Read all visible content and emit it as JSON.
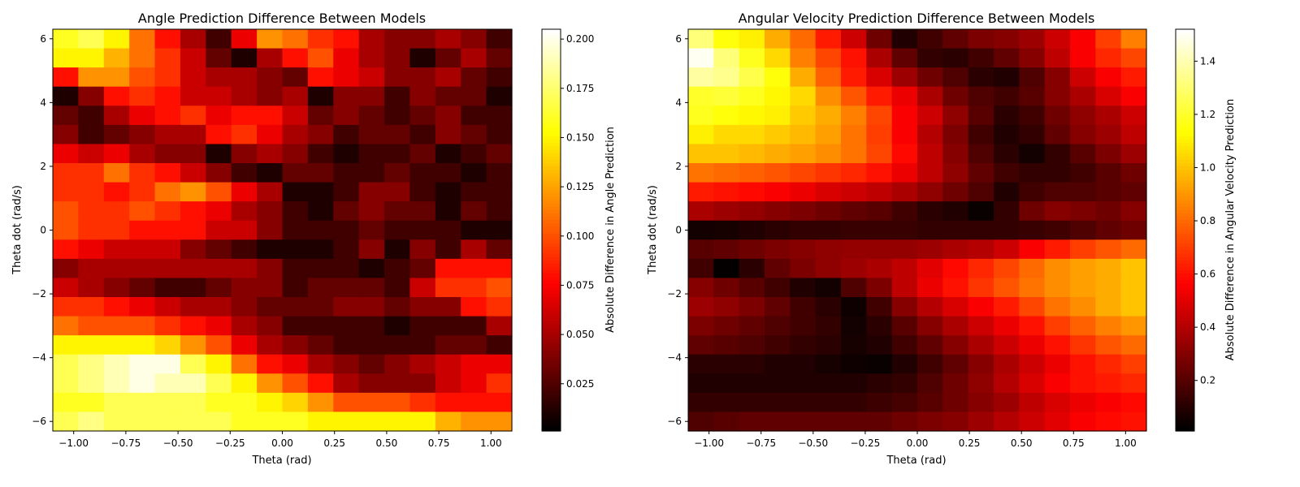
{
  "chart_data": [
    {
      "type": "heatmap",
      "title": "Angle Prediction Difference Between Models",
      "xlabel": "Theta (rad)",
      "ylabel": "Theta dot (rad/s)",
      "colorbar_label": "Absolute Difference in Angle Prediction",
      "colormap": "hot",
      "x_range": [
        -1.1,
        1.1
      ],
      "y_range": [
        -6.3,
        6.3
      ],
      "x_ticks": [
        "-1.00",
        "-0.75",
        "-0.50",
        "-0.25",
        "0.00",
        "0.25",
        "0.50",
        "0.75",
        "1.00"
      ],
      "y_ticks": [
        "-6",
        "-4",
        "-2",
        "0",
        "2",
        "4",
        "6"
      ],
      "color_range": [
        0.001,
        0.205
      ],
      "colorbar_ticks": [
        "0.025",
        "0.050",
        "0.075",
        "0.100",
        "0.125",
        "0.150",
        "0.175",
        "0.200"
      ],
      "rows_top_to_bottom": [
        [
          0.16,
          0.17,
          0.15,
          0.11,
          0.08,
          0.05,
          0.02,
          0.07,
          0.12,
          0.11,
          0.09,
          0.08,
          0.05,
          0.04,
          0.04,
          0.05,
          0.04,
          0.02
        ],
        [
          0.15,
          0.15,
          0.13,
          0.11,
          0.09,
          0.06,
          0.03,
          0.01,
          0.05,
          0.08,
          0.1,
          0.07,
          0.05,
          0.04,
          0.01,
          0.03,
          0.05,
          0.03
        ],
        [
          0.08,
          0.12,
          0.12,
          0.1,
          0.09,
          0.06,
          0.05,
          0.05,
          0.04,
          0.03,
          0.08,
          0.07,
          0.06,
          0.04,
          0.04,
          0.05,
          0.03,
          0.02
        ],
        [
          0.01,
          0.04,
          0.08,
          0.09,
          0.08,
          0.06,
          0.06,
          0.05,
          0.04,
          0.05,
          0.01,
          0.04,
          0.04,
          0.02,
          0.04,
          0.03,
          0.03,
          0.01
        ],
        [
          0.03,
          0.02,
          0.05,
          0.07,
          0.08,
          0.09,
          0.07,
          0.08,
          0.08,
          0.06,
          0.03,
          0.04,
          0.03,
          0.02,
          0.03,
          0.04,
          0.02,
          0.02
        ],
        [
          0.04,
          0.02,
          0.03,
          0.04,
          0.05,
          0.05,
          0.08,
          0.09,
          0.07,
          0.05,
          0.04,
          0.02,
          0.03,
          0.03,
          0.02,
          0.04,
          0.03,
          0.02
        ],
        [
          0.07,
          0.06,
          0.07,
          0.05,
          0.04,
          0.04,
          0.01,
          0.04,
          0.05,
          0.04,
          0.02,
          0.01,
          0.02,
          0.02,
          0.03,
          0.01,
          0.02,
          0.03
        ],
        [
          0.09,
          0.09,
          0.11,
          0.09,
          0.08,
          0.06,
          0.04,
          0.02,
          0.01,
          0.03,
          0.03,
          0.02,
          0.02,
          0.03,
          0.02,
          0.02,
          0.01,
          0.02
        ],
        [
          0.09,
          0.09,
          0.08,
          0.09,
          0.11,
          0.12,
          0.1,
          0.07,
          0.05,
          0.01,
          0.01,
          0.02,
          0.04,
          0.04,
          0.02,
          0.01,
          0.02,
          0.02
        ],
        [
          0.1,
          0.09,
          0.09,
          0.1,
          0.09,
          0.08,
          0.07,
          0.05,
          0.04,
          0.02,
          0.01,
          0.03,
          0.04,
          0.03,
          0.03,
          0.01,
          0.03,
          0.02
        ],
        [
          0.1,
          0.09,
          0.09,
          0.08,
          0.08,
          0.08,
          0.06,
          0.06,
          0.04,
          0.02,
          0.02,
          0.02,
          0.03,
          0.02,
          0.02,
          0.02,
          0.01,
          0.01
        ],
        [
          0.08,
          0.07,
          0.06,
          0.06,
          0.06,
          0.04,
          0.03,
          0.02,
          0.01,
          0.01,
          0.01,
          0.02,
          0.04,
          0.01,
          0.04,
          0.02,
          0.05,
          0.03
        ],
        [
          0.04,
          0.05,
          0.05,
          0.05,
          0.05,
          0.05,
          0.05,
          0.05,
          0.04,
          0.02,
          0.02,
          0.02,
          0.01,
          0.02,
          0.03,
          0.08,
          0.08,
          0.08
        ],
        [
          0.06,
          0.05,
          0.04,
          0.03,
          0.02,
          0.02,
          0.03,
          0.04,
          0.04,
          0.02,
          0.03,
          0.03,
          0.03,
          0.02,
          0.06,
          0.09,
          0.09,
          0.1
        ],
        [
          0.09,
          0.09,
          0.08,
          0.07,
          0.06,
          0.05,
          0.05,
          0.04,
          0.03,
          0.03,
          0.03,
          0.04,
          0.04,
          0.03,
          0.04,
          0.04,
          0.08,
          0.09
        ],
        [
          0.11,
          0.1,
          0.1,
          0.1,
          0.09,
          0.08,
          0.07,
          0.05,
          0.04,
          0.02,
          0.02,
          0.02,
          0.02,
          0.01,
          0.02,
          0.02,
          0.02,
          0.05
        ],
        [
          0.15,
          0.15,
          0.15,
          0.15,
          0.14,
          0.12,
          0.1,
          0.07,
          0.05,
          0.04,
          0.03,
          0.02,
          0.02,
          0.02,
          0.02,
          0.03,
          0.03,
          0.02
        ],
        [
          0.17,
          0.18,
          0.19,
          0.2,
          0.2,
          0.17,
          0.15,
          0.11,
          0.08,
          0.07,
          0.05,
          0.04,
          0.03,
          0.04,
          0.05,
          0.06,
          0.07,
          0.07
        ],
        [
          0.17,
          0.18,
          0.19,
          0.2,
          0.19,
          0.19,
          0.17,
          0.15,
          0.12,
          0.1,
          0.08,
          0.05,
          0.04,
          0.04,
          0.04,
          0.06,
          0.07,
          0.09
        ],
        [
          0.16,
          0.16,
          0.17,
          0.17,
          0.17,
          0.17,
          0.16,
          0.16,
          0.15,
          0.14,
          0.12,
          0.1,
          0.1,
          0.1,
          0.09,
          0.08,
          0.08,
          0.08
        ],
        [
          0.17,
          0.18,
          0.17,
          0.17,
          0.17,
          0.17,
          0.17,
          0.16,
          0.16,
          0.16,
          0.15,
          0.15,
          0.15,
          0.15,
          0.15,
          0.13,
          0.12,
          0.12
        ]
      ]
    },
    {
      "type": "heatmap",
      "title": "Angular Velocity Prediction Difference Between Models",
      "xlabel": "Theta (rad)",
      "ylabel": "Theta dot (rad/s)",
      "colorbar_label": "Absolute Difference in Angular Velocity Prediction",
      "colormap": "hot",
      "x_range": [
        -1.1,
        1.1
      ],
      "y_range": [
        -6.3,
        6.3
      ],
      "x_ticks": [
        "-1.00",
        "-0.75",
        "-0.50",
        "-0.25",
        "0.00",
        "0.25",
        "0.50",
        "0.75",
        "1.00"
      ],
      "y_ticks": [
        "-6",
        "-4",
        "-2",
        "0",
        "2",
        "4",
        "6"
      ],
      "color_range": [
        0.01,
        1.52
      ],
      "colorbar_ticks": [
        "0.2",
        "0.4",
        "0.6",
        "0.8",
        "1.0",
        "1.2",
        "1.4"
      ],
      "rows_top_to_bottom": [
        [
          1.32,
          1.15,
          1.1,
          0.95,
          0.8,
          0.62,
          0.45,
          0.25,
          0.08,
          0.15,
          0.22,
          0.28,
          0.3,
          0.35,
          0.45,
          0.55,
          0.7,
          0.85
        ],
        [
          1.5,
          1.32,
          1.18,
          1.05,
          0.85,
          0.72,
          0.6,
          0.38,
          0.22,
          0.12,
          0.1,
          0.15,
          0.22,
          0.3,
          0.42,
          0.55,
          0.65,
          0.72
        ],
        [
          1.38,
          1.35,
          1.25,
          1.15,
          0.95,
          0.78,
          0.62,
          0.48,
          0.35,
          0.25,
          0.18,
          0.1,
          0.08,
          0.18,
          0.3,
          0.45,
          0.55,
          0.62
        ],
        [
          1.2,
          1.22,
          1.18,
          1.12,
          1.05,
          0.88,
          0.75,
          0.62,
          0.52,
          0.38,
          0.25,
          0.18,
          0.15,
          0.2,
          0.3,
          0.38,
          0.48,
          0.55
        ],
        [
          1.18,
          1.15,
          1.12,
          1.1,
          1.02,
          0.95,
          0.85,
          0.72,
          0.55,
          0.45,
          0.32,
          0.2,
          0.1,
          0.15,
          0.25,
          0.32,
          0.38,
          0.45
        ],
        [
          1.1,
          1.05,
          1.05,
          1.02,
          0.98,
          0.92,
          0.82,
          0.7,
          0.55,
          0.4,
          0.28,
          0.15,
          0.08,
          0.12,
          0.22,
          0.3,
          0.35,
          0.42
        ],
        [
          1.0,
          1.0,
          0.98,
          0.95,
          0.92,
          0.88,
          0.82,
          0.72,
          0.58,
          0.42,
          0.3,
          0.18,
          0.1,
          0.05,
          0.12,
          0.2,
          0.28,
          0.35
        ],
        [
          0.82,
          0.8,
          0.78,
          0.75,
          0.72,
          0.68,
          0.65,
          0.6,
          0.52,
          0.42,
          0.32,
          0.22,
          0.15,
          0.12,
          0.12,
          0.15,
          0.2,
          0.25
        ],
        [
          0.62,
          0.6,
          0.58,
          0.55,
          0.52,
          0.48,
          0.45,
          0.42,
          0.38,
          0.32,
          0.25,
          0.18,
          0.08,
          0.15,
          0.18,
          0.18,
          0.2,
          0.22
        ],
        [
          0.38,
          0.35,
          0.33,
          0.3,
          0.28,
          0.25,
          0.22,
          0.2,
          0.15,
          0.1,
          0.08,
          0.03,
          0.12,
          0.25,
          0.3,
          0.28,
          0.25,
          0.3
        ],
        [
          0.05,
          0.06,
          0.08,
          0.1,
          0.12,
          0.12,
          0.13,
          0.13,
          0.13,
          0.12,
          0.12,
          0.12,
          0.12,
          0.13,
          0.15,
          0.18,
          0.22,
          0.25
        ],
        [
          0.2,
          0.22,
          0.25,
          0.28,
          0.3,
          0.32,
          0.33,
          0.33,
          0.33,
          0.35,
          0.38,
          0.4,
          0.45,
          0.55,
          0.62,
          0.7,
          0.75,
          0.8
        ],
        [
          0.15,
          0.02,
          0.1,
          0.22,
          0.28,
          0.32,
          0.35,
          0.38,
          0.42,
          0.5,
          0.58,
          0.65,
          0.72,
          0.8,
          0.88,
          0.92,
          0.95,
          1.0
        ],
        [
          0.3,
          0.25,
          0.2,
          0.15,
          0.08,
          0.05,
          0.18,
          0.28,
          0.42,
          0.52,
          0.6,
          0.68,
          0.75,
          0.82,
          0.88,
          0.92,
          0.95,
          1.0
        ],
        [
          0.35,
          0.32,
          0.28,
          0.22,
          0.15,
          0.1,
          0.04,
          0.15,
          0.3,
          0.4,
          0.48,
          0.55,
          0.62,
          0.72,
          0.82,
          0.88,
          0.95,
          1.0
        ],
        [
          0.28,
          0.25,
          0.22,
          0.18,
          0.15,
          0.12,
          0.05,
          0.1,
          0.2,
          0.3,
          0.38,
          0.45,
          0.52,
          0.6,
          0.7,
          0.78,
          0.85,
          0.9
        ],
        [
          0.22,
          0.2,
          0.18,
          0.15,
          0.12,
          0.1,
          0.06,
          0.08,
          0.15,
          0.22,
          0.3,
          0.38,
          0.45,
          0.52,
          0.6,
          0.68,
          0.75,
          0.8
        ],
        [
          0.1,
          0.1,
          0.1,
          0.08,
          0.08,
          0.06,
          0.04,
          0.03,
          0.08,
          0.15,
          0.22,
          0.3,
          0.38,
          0.45,
          0.52,
          0.6,
          0.65,
          0.7
        ],
        [
          0.08,
          0.08,
          0.08,
          0.08,
          0.08,
          0.08,
          0.08,
          0.1,
          0.12,
          0.18,
          0.25,
          0.32,
          0.4,
          0.48,
          0.55,
          0.6,
          0.62,
          0.65
        ],
        [
          0.12,
          0.12,
          0.12,
          0.12,
          0.12,
          0.12,
          0.12,
          0.14,
          0.16,
          0.2,
          0.25,
          0.3,
          0.35,
          0.42,
          0.48,
          0.52,
          0.55,
          0.58
        ],
        [
          0.18,
          0.2,
          0.22,
          0.22,
          0.22,
          0.22,
          0.22,
          0.22,
          0.25,
          0.28,
          0.3,
          0.35,
          0.4,
          0.45,
          0.5,
          0.55,
          0.58,
          0.6
        ]
      ]
    }
  ]
}
